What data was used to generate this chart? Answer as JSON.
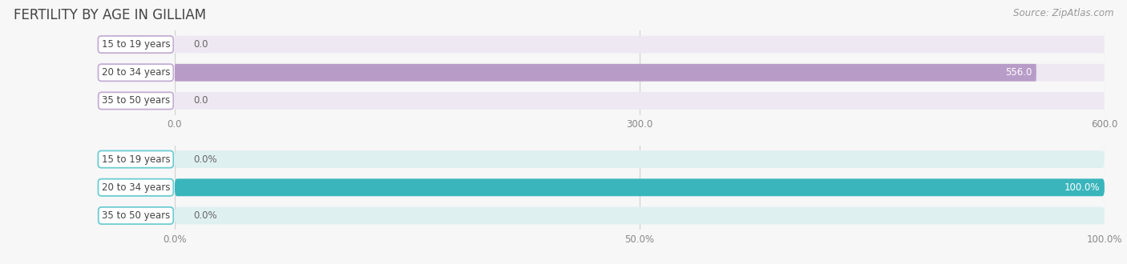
{
  "title": "FERTILITY BY AGE IN GILLIAM",
  "source": "Source: ZipAtlas.com",
  "top_chart": {
    "categories": [
      "15 to 19 years",
      "20 to 34 years",
      "35 to 50 years"
    ],
    "values": [
      0.0,
      556.0,
      0.0
    ],
    "xlim": [
      0,
      600.0
    ],
    "xticks": [
      0.0,
      300.0,
      600.0
    ],
    "xticklabels": [
      "0.0",
      "300.0",
      "600.0"
    ],
    "bar_color": "#b89cc8",
    "bar_bg_color": "#ede8f2",
    "value_labels": [
      "0.0",
      "556.0",
      "0.0"
    ]
  },
  "bottom_chart": {
    "categories": [
      "15 to 19 years",
      "20 to 34 years",
      "35 to 50 years"
    ],
    "values": [
      0.0,
      100.0,
      0.0
    ],
    "xlim": [
      0,
      100.0
    ],
    "xticks": [
      0.0,
      50.0,
      100.0
    ],
    "xticklabels": [
      "0.0%",
      "50.0%",
      "100.0%"
    ],
    "bar_color": "#3ab5bc",
    "bar_bg_color": "#dff0f1",
    "value_labels": [
      "0.0%",
      "100.0%",
      "0.0%"
    ]
  },
  "label_box_color_top": "#c4aed4",
  "label_box_color_bottom": "#6dccd2",
  "label_text_color": "#444444",
  "bg_color": "#f7f7f7",
  "title_color": "#444444",
  "source_color": "#999999",
  "bar_height": 0.62,
  "title_fontsize": 12,
  "label_fontsize": 8.5,
  "tick_fontsize": 8.5,
  "source_fontsize": 8.5,
  "rounding_size": 0.25
}
